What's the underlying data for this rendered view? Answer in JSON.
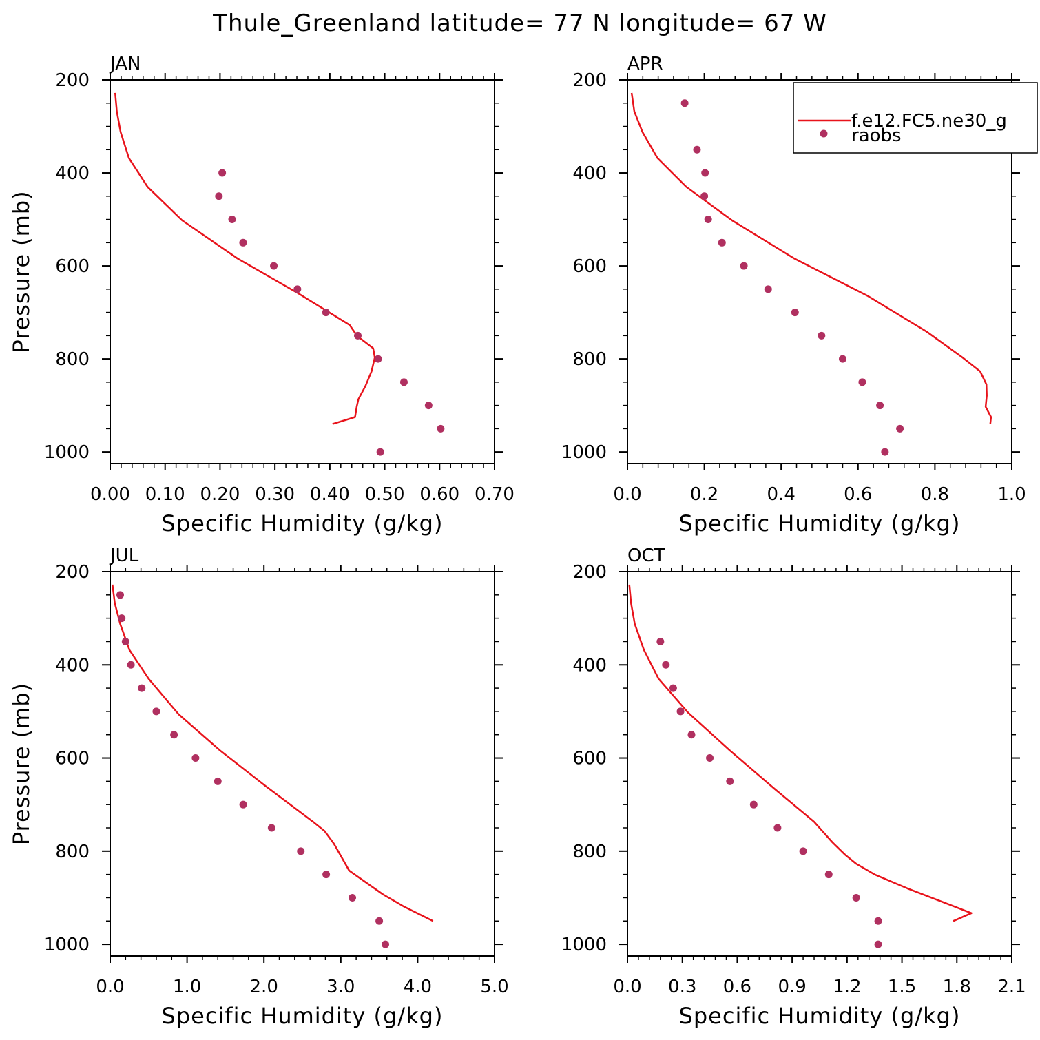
{
  "figure_title": "Thule_Greenland  latitude= 77 N longitude= 67 W",
  "legend": {
    "model_label": "f.e12.FC5.ne30_g",
    "obs_label": "raobs",
    "placement": "top-right of APR panel"
  },
  "colors": {
    "model_line": "#e8131b",
    "obs_marker": "#b03060",
    "axes": "#000000"
  },
  "chart_data": [
    {
      "type": "line+scatter",
      "panel": "JAN",
      "title": "JAN",
      "xlabel": "Specific Humidity (g/kg)",
      "ylabel": "Pressure (mb)",
      "xlim": [
        0.0,
        0.7
      ],
      "ylim": [
        200,
        1025
      ],
      "x_ticks": [
        "0.00",
        "0.10",
        "0.20",
        "0.30",
        "0.40",
        "0.50",
        "0.60",
        "0.70"
      ],
      "y_ticks": [
        "200",
        "400",
        "600",
        "800",
        "1000"
      ],
      "series": [
        {
          "name": "f.e12.FC5.ne30_g",
          "kind": "line",
          "points": [
            [
              0.009,
              228
            ],
            [
              0.012,
              268
            ],
            [
              0.019,
              312
            ],
            [
              0.034,
              368
            ],
            [
              0.068,
              430
            ],
            [
              0.131,
              502
            ],
            [
              0.232,
              584
            ],
            [
              0.341,
              658
            ],
            [
              0.436,
              727
            ],
            [
              0.45,
              751
            ],
            [
              0.479,
              777
            ],
            [
              0.482,
              797
            ],
            [
              0.476,
              827
            ],
            [
              0.465,
              858
            ],
            [
              0.452,
              887
            ],
            [
              0.449,
              903
            ],
            [
              0.446,
              925
            ],
            [
              0.405,
              940
            ]
          ]
        },
        {
          "name": "raobs",
          "kind": "scatter",
          "points": [
            [
              0.204,
              400
            ],
            [
              0.198,
              450
            ],
            [
              0.222,
              500
            ],
            [
              0.242,
              550
            ],
            [
              0.298,
              600
            ],
            [
              0.341,
              650
            ],
            [
              0.393,
              700
            ],
            [
              0.451,
              750
            ],
            [
              0.488,
              800
            ],
            [
              0.535,
              850
            ],
            [
              0.58,
              900
            ],
            [
              0.602,
              950
            ],
            [
              0.492,
              1000
            ]
          ]
        }
      ]
    },
    {
      "type": "line+scatter",
      "panel": "APR",
      "title": "APR",
      "xlabel": "Specific Humidity (g/kg)",
      "ylabel": "",
      "xlim": [
        0.0,
        1.0
      ],
      "ylim": [
        200,
        1025
      ],
      "x_ticks": [
        "0.0",
        "0.2",
        "0.4",
        "0.6",
        "0.8",
        "1.0"
      ],
      "y_ticks": [
        "200",
        "400",
        "600",
        "800",
        "1000"
      ],
      "series": [
        {
          "name": "f.e12.FC5.ne30_g",
          "kind": "line",
          "points": [
            [
              0.011,
              228
            ],
            [
              0.018,
              268
            ],
            [
              0.039,
              312
            ],
            [
              0.078,
              368
            ],
            [
              0.153,
              430
            ],
            [
              0.272,
              502
            ],
            [
              0.434,
              584
            ],
            [
              0.626,
              665
            ],
            [
              0.778,
              741
            ],
            [
              0.872,
              797
            ],
            [
              0.918,
              827
            ],
            [
              0.934,
              855
            ],
            [
              0.935,
              879
            ],
            [
              0.932,
              903
            ],
            [
              0.946,
              925
            ],
            [
              0.944,
              940
            ]
          ]
        },
        {
          "name": "raobs",
          "kind": "scatter",
          "points": [
            [
              0.149,
              250
            ],
            [
              0.181,
              350
            ],
            [
              0.202,
              400
            ],
            [
              0.2,
              450
            ],
            [
              0.21,
              500
            ],
            [
              0.246,
              550
            ],
            [
              0.303,
              600
            ],
            [
              0.366,
              650
            ],
            [
              0.436,
              700
            ],
            [
              0.505,
              750
            ],
            [
              0.56,
              800
            ],
            [
              0.611,
              850
            ],
            [
              0.657,
              900
            ],
            [
              0.709,
              950
            ],
            [
              0.67,
              1000
            ]
          ]
        }
      ]
    },
    {
      "type": "line+scatter",
      "panel": "JUL",
      "title": "JUL",
      "xlabel": "Specific Humidity (g/kg)",
      "ylabel": "Pressure (mb)",
      "xlim": [
        0.0,
        5.0
      ],
      "ylim": [
        200,
        1025
      ],
      "x_ticks": [
        "0.0",
        "1.0",
        "2.0",
        "3.0",
        "4.0",
        "5.0"
      ],
      "y_ticks": [
        "200",
        "400",
        "600",
        "800",
        "1000"
      ],
      "series": [
        {
          "name": "f.e12.FC5.ne30_g",
          "kind": "line",
          "points": [
            [
              0.03,
              228
            ],
            [
              0.06,
              268
            ],
            [
              0.13,
              312
            ],
            [
              0.25,
              368
            ],
            [
              0.5,
              430
            ],
            [
              0.89,
              506
            ],
            [
              1.43,
              584
            ],
            [
              2.02,
              660
            ],
            [
              2.64,
              737
            ],
            [
              2.79,
              757
            ],
            [
              2.91,
              784
            ],
            [
              3.11,
              842
            ],
            [
              3.36,
              871
            ],
            [
              3.55,
              893
            ],
            [
              3.81,
              918
            ],
            [
              4.2,
              950
            ]
          ]
        },
        {
          "name": "raobs",
          "kind": "scatter",
          "points": [
            [
              0.13,
              250
            ],
            [
              0.15,
              300
            ],
            [
              0.2,
              350
            ],
            [
              0.27,
              400
            ],
            [
              0.41,
              450
            ],
            [
              0.6,
              500
            ],
            [
              0.83,
              550
            ],
            [
              1.11,
              600
            ],
            [
              1.4,
              650
            ],
            [
              1.73,
              700
            ],
            [
              2.1,
              750
            ],
            [
              2.48,
              800
            ],
            [
              2.81,
              850
            ],
            [
              3.15,
              900
            ],
            [
              3.5,
              950
            ],
            [
              3.58,
              1000
            ]
          ]
        }
      ]
    },
    {
      "type": "line+scatter",
      "panel": "OCT",
      "title": "OCT",
      "xlabel": "Specific Humidity (g/kg)",
      "ylabel": "",
      "xlim": [
        0.0,
        2.1
      ],
      "ylim": [
        200,
        1025
      ],
      "x_ticks": [
        "0.0",
        "0.3",
        "0.6",
        "0.9",
        "1.2",
        "1.5",
        "1.8",
        "2.1"
      ],
      "y_ticks": [
        "200",
        "400",
        "600",
        "800",
        "1000"
      ],
      "series": [
        {
          "name": "f.e12.FC5.ne30_g",
          "kind": "line",
          "points": [
            [
              0.01,
              228
            ],
            [
              0.02,
              268
            ],
            [
              0.04,
              312
            ],
            [
              0.09,
              368
            ],
            [
              0.17,
              430
            ],
            [
              0.33,
              502
            ],
            [
              0.56,
              584
            ],
            [
              0.8,
              665
            ],
            [
              1.02,
              737
            ],
            [
              1.12,
              781
            ],
            [
              1.19,
              808
            ],
            [
              1.25,
              827
            ],
            [
              1.35,
              850
            ],
            [
              1.53,
              880
            ],
            [
              1.78,
              918
            ],
            [
              1.88,
              933
            ],
            [
              1.78,
              950
            ]
          ]
        },
        {
          "name": "raobs",
          "kind": "scatter",
          "points": [
            [
              0.18,
              350
            ],
            [
              0.21,
              400
            ],
            [
              0.25,
              450
            ],
            [
              0.29,
              500
            ],
            [
              0.35,
              550
            ],
            [
              0.45,
              600
            ],
            [
              0.56,
              650
            ],
            [
              0.69,
              700
            ],
            [
              0.82,
              750
            ],
            [
              0.96,
              800
            ],
            [
              1.1,
              850
            ],
            [
              1.25,
              900
            ],
            [
              1.37,
              950
            ],
            [
              1.37,
              1000
            ]
          ]
        }
      ]
    }
  ]
}
